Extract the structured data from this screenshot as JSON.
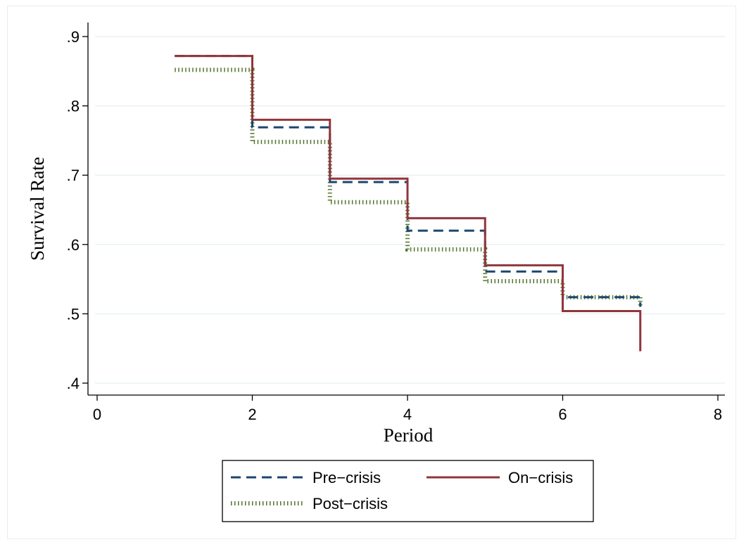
{
  "chart_data": {
    "type": "line",
    "step": true,
    "xlabel": "Period",
    "ylabel": "Survival Rate",
    "xlim": [
      0,
      8
    ],
    "ylim": [
      0.4,
      0.9
    ],
    "x_ticks": [
      0,
      2,
      4,
      6,
      8
    ],
    "x_tick_labels": [
      "0",
      "2",
      "4",
      "6",
      "8"
    ],
    "y_ticks": [
      0.4,
      0.5,
      0.6,
      0.7,
      0.8,
      0.9
    ],
    "y_tick_labels": [
      ".4",
      ".5",
      ".6",
      ".7",
      ".8",
      ".9"
    ],
    "grid": true,
    "legend_position": "bottom",
    "series": [
      {
        "name": "Pre−crisis",
        "style": "dashed",
        "color": "#1a476f",
        "x": [
          1,
          2,
          3,
          4,
          5,
          6,
          7
        ],
        "y": [
          0.872,
          0.769,
          0.69,
          0.62,
          0.561,
          0.524,
          0.51
        ]
      },
      {
        "name": "On−crisis",
        "style": "solid",
        "color": "#90353b",
        "x": [
          1,
          2,
          3,
          4,
          5,
          6,
          7
        ],
        "y": [
          0.872,
          0.78,
          0.695,
          0.638,
          0.57,
          0.504,
          0.446
        ]
      },
      {
        "name": "Post−crisis",
        "style": "dotted",
        "color": "#55752f",
        "x": [
          1,
          2,
          3,
          4,
          5,
          6,
          7
        ],
        "y": [
          0.852,
          0.748,
          0.661,
          0.593,
          0.547,
          0.524,
          0.51
        ]
      }
    ]
  }
}
